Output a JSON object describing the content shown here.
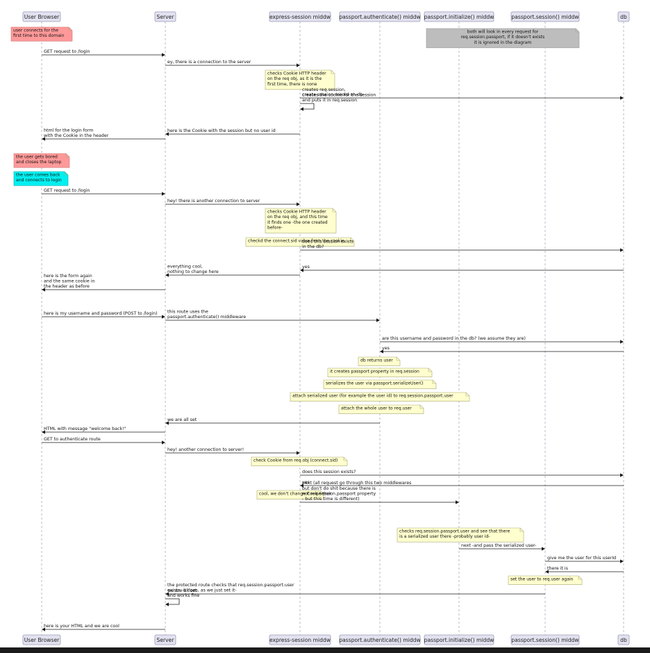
{
  "participants": [
    "User Browser",
    "Server",
    "express-session middw",
    "passport.authenticate() middw",
    "passport.initialize() middw",
    "passport.session() middw",
    "db"
  ],
  "events": [
    {
      "type": "note",
      "over": [
        0
      ],
      "color": "red",
      "lines": [
        "user connects for the",
        "first time to this domain"
      ]
    },
    {
      "type": "note",
      "over": [
        4,
        5
      ],
      "color": "gray",
      "lines": [
        "both will look in every request for",
        "req.session.passport, if it doesn't exists",
        "it is ignored in the diagram"
      ]
    },
    {
      "type": "msg",
      "from": 0,
      "to": 1,
      "lines": [
        "GET request to /login"
      ]
    },
    {
      "type": "msg",
      "from": 1,
      "to": 2,
      "lines": [
        "ey, there is a connection to the server"
      ]
    },
    {
      "type": "note",
      "over": [
        2,
        3
      ],
      "lines": [
        "checks Cookie HTTP header",
        "on the req obj, as it is the",
        "first time, there is none"
      ]
    },
    {
      "type": "msg",
      "from": 2,
      "to": 6,
      "lines": [
        "create session record on db"
      ]
    },
    {
      "type": "self",
      "at": 2,
      "lines": [
        "creates req.session,",
        "creates the cookie for the session",
        "and puts it in req.session"
      ]
    },
    {
      "type": "msg",
      "from": 2,
      "to": 1,
      "lines": [
        "here is the Cookie with the session but no user id"
      ]
    },
    {
      "type": "msg",
      "from": 1,
      "to": 0,
      "lines": [
        "html for the login form",
        "with the Cookie in the header"
      ]
    },
    {
      "type": "note",
      "over": [
        0
      ],
      "color": "red",
      "lines": [
        "the user gets bored",
        "and closes the laptop"
      ]
    },
    {
      "type": "note",
      "over": [
        0
      ],
      "color": "cyan",
      "lines": [
        "the user comes back",
        "and connects to login"
      ]
    },
    {
      "type": "msg",
      "from": 0,
      "to": 1,
      "lines": [
        "GET request to /login"
      ]
    },
    {
      "type": "msg",
      "from": 1,
      "to": 2,
      "lines": [
        "hey! there is another connection to server"
      ]
    },
    {
      "type": "note",
      "over": [
        2,
        3
      ],
      "lines": [
        "checks Cookie HTTP header",
        "on the req obj, and this time",
        "it finds one -the one created",
        "before-"
      ]
    },
    {
      "type": "note",
      "over": [
        2,
        3
      ],
      "lines": [
        "checkd the connect.sid value from the cookie"
      ]
    },
    {
      "type": "msg",
      "from": 2,
      "to": 6,
      "lines": [
        "does this session exists",
        "in the db?"
      ]
    },
    {
      "type": "msg",
      "from": 6,
      "to": 2,
      "lines": [
        "yes"
      ]
    },
    {
      "type": "msg",
      "from": 2,
      "to": 1,
      "lines": [
        "everything cool,",
        "nothing to change here"
      ]
    },
    {
      "type": "msg",
      "from": 1,
      "to": 0,
      "lines": [
        "here is the form again",
        "and the same cookie in",
        "the header as before"
      ]
    },
    {
      "type": "msg",
      "from": 0,
      "to": 1,
      "lines": [
        "here is my username and password (POST to /login)"
      ]
    },
    {
      "type": "msg",
      "from": 1,
      "to": 3,
      "lines": [
        "this route uses the",
        "passport.authenticate() middleware"
      ]
    },
    {
      "type": "msg",
      "from": 3,
      "to": 6,
      "lines": [
        "are this username and password in the db? (we assume they are)"
      ]
    },
    {
      "type": "msg",
      "from": 6,
      "to": 3,
      "lines": [
        "yes"
      ]
    },
    {
      "type": "note",
      "over": [
        3
      ],
      "lines": [
        "db returns user"
      ]
    },
    {
      "type": "note",
      "over": [
        3
      ],
      "lines": [
        "it creates passport property in req.session"
      ]
    },
    {
      "type": "note",
      "over": [
        3
      ],
      "lines": [
        "serializes the user via passport.serializeUser()"
      ]
    },
    {
      "type": "note",
      "over": [
        3
      ],
      "lines": [
        "attach serialized user (for example the user id) to req.session.passport.user"
      ]
    },
    {
      "type": "note",
      "over": [
        3
      ],
      "lines": [
        "attach the whole user to req.user"
      ]
    },
    {
      "type": "msg",
      "from": 3,
      "to": 1,
      "lines": [
        "we are all set"
      ]
    },
    {
      "type": "msg",
      "from": 1,
      "to": 0,
      "lines": [
        "HTML with message \"welcome back!\""
      ]
    },
    {
      "type": "msg",
      "from": 0,
      "to": 1,
      "lines": [
        "GET to authenticate route"
      ]
    },
    {
      "type": "msg",
      "from": 1,
      "to": 2,
      "lines": [
        "hey! another connection to server!"
      ]
    },
    {
      "type": "note",
      "over": [
        2,
        3
      ],
      "lines": [
        "check Cookie from req.obj (connect.sid)"
      ]
    },
    {
      "type": "msg",
      "from": 2,
      "to": 6,
      "lines": [
        "does this session exists?"
      ]
    },
    {
      "type": "msg",
      "from": 6,
      "to": 2,
      "lines": [
        "yes"
      ]
    },
    {
      "type": "note",
      "over": [
        2
      ],
      "lines": [
        "cool, we don't change Cookie ther"
      ]
    },
    {
      "type": "msg",
      "from": 2,
      "to": 4,
      "lines": [
        "next (all request go through this two middlewares",
        "but don't do shit because there is",
        "not req.session.passport property",
        "- but this time is different)"
      ]
    },
    {
      "type": "note",
      "over": [
        4,
        5
      ],
      "lines": [
        "checks req.session.passport.user and see that there",
        "is a serialized user there -probably user id-"
      ]
    },
    {
      "type": "msg",
      "from": 4,
      "to": 5,
      "lines": [
        "next -and pass the serialized user-"
      ]
    },
    {
      "type": "msg",
      "from": 5,
      "to": 6,
      "lines": [
        "give me the user for this userId"
      ]
    },
    {
      "type": "msg",
      "from": 6,
      "to": 5,
      "lines": [
        "there it is"
      ]
    },
    {
      "type": "note",
      "over": [
        5
      ],
      "lines": [
        "set the user to req.user again"
      ]
    },
    {
      "type": "msg",
      "from": 5,
      "to": 1,
      "lines": [
        "we are all set"
      ]
    },
    {
      "type": "self",
      "at": 1,
      "lines": [
        "the protected route checks that req.session.passport.user",
        "exists -it does, as we just set it-",
        "and works fine"
      ]
    },
    {
      "type": "msg",
      "from": 1,
      "to": 0,
      "lines": [
        "here is your HTML and we are cool"
      ]
    }
  ]
}
